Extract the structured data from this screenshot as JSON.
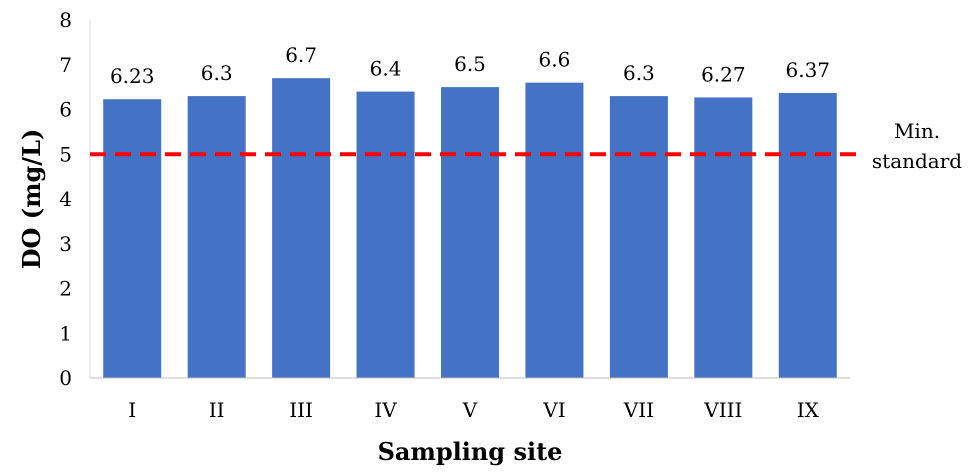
{
  "chart_data": {
    "type": "bar",
    "categories": [
      "I",
      "II",
      "III",
      "IV",
      "V",
      "VI",
      "VII",
      "VIII",
      "IX"
    ],
    "values": [
      6.23,
      6.3,
      6.7,
      6.4,
      6.5,
      6.6,
      6.3,
      6.27,
      6.37
    ],
    "data_labels": [
      "6.23",
      "6.3",
      "6.7",
      "6.4",
      "6.5",
      "6.6",
      "6.3",
      "6.27",
      "6.37"
    ],
    "xlabel": "Sampling site",
    "ylabel": "DO (mg/L)",
    "ylim": [
      0,
      8
    ],
    "yticks": [
      "0",
      "1",
      "2",
      "3",
      "4",
      "5",
      "6",
      "7",
      "8"
    ],
    "grid": false,
    "bar_color": "#4472C4",
    "reference_line": {
      "value": 5,
      "label_lines": [
        "Min.",
        "standard"
      ],
      "color": "#FF0000",
      "style": "dashed"
    }
  }
}
